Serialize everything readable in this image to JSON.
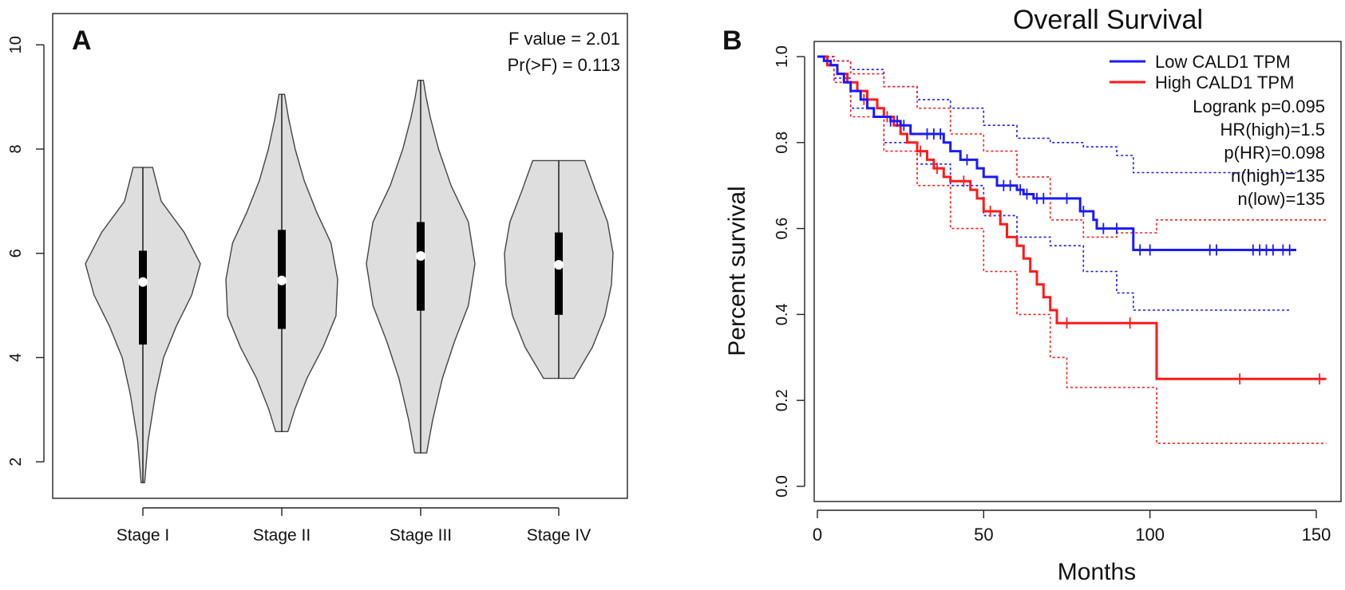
{
  "chart_data": [
    {
      "type": "violin",
      "panel_label": "A",
      "annotations": [
        "F value = 2.01",
        "Pr(>F) = 0.113"
      ],
      "categories": [
        "Stage I",
        "Stage II",
        "Stage III",
        "Stage IV"
      ],
      "yticks": [
        2,
        4,
        6,
        8,
        10
      ],
      "ylim": [
        1.3,
        10.6
      ],
      "violins": [
        {
          "name": "Stage I",
          "min": 1.6,
          "max": 7.65,
          "q1": 4.25,
          "q3": 6.05,
          "median": 5.45,
          "profile": [
            [
              1.6,
              0.03
            ],
            [
              2.4,
              0.09
            ],
            [
              3.3,
              0.22
            ],
            [
              4.0,
              0.36
            ],
            [
              4.6,
              0.58
            ],
            [
              5.2,
              0.85
            ],
            [
              5.8,
              1.0
            ],
            [
              6.4,
              0.72
            ],
            [
              7.0,
              0.32
            ],
            [
              7.65,
              0.17
            ]
          ]
        },
        {
          "name": "Stage II",
          "min": 2.58,
          "max": 9.05,
          "q1": 4.55,
          "q3": 6.45,
          "median": 5.48,
          "profile": [
            [
              2.58,
              0.11
            ],
            [
              3.0,
              0.23
            ],
            [
              3.6,
              0.45
            ],
            [
              4.2,
              0.74
            ],
            [
              4.8,
              0.97
            ],
            [
              5.5,
              1.0
            ],
            [
              6.2,
              0.88
            ],
            [
              6.8,
              0.62
            ],
            [
              7.4,
              0.4
            ],
            [
              8.0,
              0.24
            ],
            [
              8.6,
              0.12
            ],
            [
              9.05,
              0.05
            ]
          ]
        },
        {
          "name": "Stage III",
          "min": 2.17,
          "max": 9.32,
          "q1": 4.9,
          "q3": 6.6,
          "median": 5.95,
          "profile": [
            [
              2.17,
              0.11
            ],
            [
              2.8,
              0.22
            ],
            [
              3.6,
              0.4
            ],
            [
              4.3,
              0.62
            ],
            [
              5.0,
              0.88
            ],
            [
              5.8,
              1.0
            ],
            [
              6.6,
              0.88
            ],
            [
              7.3,
              0.56
            ],
            [
              8.0,
              0.33
            ],
            [
              8.6,
              0.18
            ],
            [
              9.0,
              0.1
            ],
            [
              9.32,
              0.05
            ]
          ]
        },
        {
          "name": "Stage IV",
          "min": 3.6,
          "max": 7.78,
          "q1": 4.82,
          "q3": 6.4,
          "median": 5.78,
          "profile": [
            [
              3.6,
              0.28
            ],
            [
              4.2,
              0.62
            ],
            [
              4.8,
              0.85
            ],
            [
              5.4,
              0.97
            ],
            [
              6.0,
              1.0
            ],
            [
              6.6,
              0.9
            ],
            [
              7.2,
              0.68
            ],
            [
              7.78,
              0.48
            ]
          ]
        }
      ]
    },
    {
      "type": "line",
      "panel_label": "B",
      "title": "Overall Survival",
      "xlabel": "Months",
      "ylabel": "Percent survival",
      "xlim": [
        0,
        155
      ],
      "ylim": [
        0,
        1.05
      ],
      "xticks": [
        0,
        50,
        100,
        150
      ],
      "yticks": [
        "0.0",
        "0.2",
        "0.4",
        "0.6",
        "0.8",
        "1.0"
      ],
      "legend": [
        {
          "name": "Low CALD1 TPM",
          "color": "#1a1aff"
        },
        {
          "name": "High CALD1 TPM",
          "color": "#ff1a1a"
        }
      ],
      "stats": [
        "Logrank p=0.095",
        "HR(high)=1.5",
        "p(HR)=0.098",
        "n(high)=135",
        "n(low)=135"
      ],
      "series": [
        {
          "name": "Low CALD1 TPM",
          "color": "#1a1aff",
          "steps": [
            [
              0,
              1.0
            ],
            [
              2,
              0.99
            ],
            [
              4,
              0.98
            ],
            [
              6,
              0.96
            ],
            [
              8,
              0.94
            ],
            [
              10,
              0.92
            ],
            [
              13,
              0.9
            ],
            [
              15,
              0.88
            ],
            [
              17,
              0.86
            ],
            [
              22,
              0.85
            ],
            [
              25,
              0.84
            ],
            [
              28,
              0.82
            ],
            [
              38,
              0.8
            ],
            [
              40,
              0.78
            ],
            [
              43,
              0.76
            ],
            [
              48,
              0.74
            ],
            [
              50,
              0.72
            ],
            [
              54,
              0.7
            ],
            [
              60,
              0.69
            ],
            [
              62,
              0.68
            ],
            [
              65,
              0.67
            ],
            [
              79,
              0.64
            ],
            [
              83,
              0.62
            ],
            [
              84,
              0.6
            ],
            [
              95,
              0.55
            ],
            [
              144,
              0.55
            ]
          ],
          "censors": [
            [
              22,
              0.85
            ],
            [
              24,
              0.85
            ],
            [
              26,
              0.84
            ],
            [
              33,
              0.82
            ],
            [
              35,
              0.82
            ],
            [
              37,
              0.82
            ],
            [
              45,
              0.76
            ],
            [
              56,
              0.7
            ],
            [
              58,
              0.7
            ],
            [
              61,
              0.69
            ],
            [
              63,
              0.68
            ],
            [
              66,
              0.67
            ],
            [
              68,
              0.67
            ],
            [
              75,
              0.67
            ],
            [
              80,
              0.64
            ],
            [
              86,
              0.6
            ],
            [
              90,
              0.6
            ],
            [
              97,
              0.55
            ],
            [
              100,
              0.55
            ],
            [
              118,
              0.55
            ],
            [
              120,
              0.55
            ],
            [
              131,
              0.55
            ],
            [
              133,
              0.55
            ],
            [
              135,
              0.55
            ],
            [
              137,
              0.55
            ],
            [
              140,
              0.55
            ],
            [
              142,
              0.55
            ]
          ]
        },
        {
          "name": "High CALD1 TPM",
          "color": "#ff1a1a",
          "steps": [
            [
              0,
              1.0
            ],
            [
              3,
              0.98
            ],
            [
              6,
              0.96
            ],
            [
              9,
              0.94
            ],
            [
              12,
              0.92
            ],
            [
              15,
              0.9
            ],
            [
              18,
              0.88
            ],
            [
              20,
              0.86
            ],
            [
              23,
              0.84
            ],
            [
              25,
              0.82
            ],
            [
              27,
              0.8
            ],
            [
              30,
              0.78
            ],
            [
              33,
              0.76
            ],
            [
              35,
              0.74
            ],
            [
              38,
              0.72
            ],
            [
              40,
              0.71
            ],
            [
              46,
              0.69
            ],
            [
              48,
              0.67
            ],
            [
              50,
              0.64
            ],
            [
              55,
              0.61
            ],
            [
              57,
              0.58
            ],
            [
              60,
              0.56
            ],
            [
              62,
              0.53
            ],
            [
              64,
              0.5
            ],
            [
              66,
              0.47
            ],
            [
              68,
              0.44
            ],
            [
              70,
              0.41
            ],
            [
              72,
              0.38
            ],
            [
              102,
              0.25
            ],
            [
              153,
              0.25
            ]
          ],
          "censors": [
            [
              14,
              0.9
            ],
            [
              21,
              0.86
            ],
            [
              31,
              0.78
            ],
            [
              36,
              0.74
            ],
            [
              44,
              0.71
            ],
            [
              52,
              0.64
            ],
            [
              75,
              0.38
            ],
            [
              94,
              0.38
            ],
            [
              127,
              0.25
            ],
            [
              151,
              0.25
            ]
          ]
        }
      ],
      "ci_bands": [
        {
          "color": "#1a1aff",
          "upper": [
            [
              0,
              1.0
            ],
            [
              5,
              0.99
            ],
            [
              10,
              0.97
            ],
            [
              20,
              0.93
            ],
            [
              30,
              0.9
            ],
            [
              40,
              0.88
            ],
            [
              50,
              0.84
            ],
            [
              60,
              0.81
            ],
            [
              70,
              0.8
            ],
            [
              80,
              0.79
            ],
            [
              90,
              0.77
            ],
            [
              95,
              0.73
            ],
            [
              144,
              0.73
            ]
          ],
          "lower": [
            [
              0,
              1.0
            ],
            [
              5,
              0.95
            ],
            [
              10,
              0.88
            ],
            [
              20,
              0.8
            ],
            [
              30,
              0.75
            ],
            [
              40,
              0.7
            ],
            [
              50,
              0.63
            ],
            [
              60,
              0.58
            ],
            [
              70,
              0.56
            ],
            [
              80,
              0.5
            ],
            [
              90,
              0.45
            ],
            [
              95,
              0.41
            ],
            [
              142,
              0.41
            ]
          ]
        },
        {
          "color": "#ff1a1a",
          "upper": [
            [
              0,
              1.0
            ],
            [
              5,
              0.99
            ],
            [
              10,
              0.96
            ],
            [
              20,
              0.93
            ],
            [
              30,
              0.88
            ],
            [
              40,
              0.82
            ],
            [
              50,
              0.78
            ],
            [
              60,
              0.72
            ],
            [
              70,
              0.62
            ],
            [
              80,
              0.58
            ],
            [
              90,
              0.59
            ],
            [
              102,
              0.62
            ],
            [
              153,
              0.62
            ]
          ],
          "lower": [
            [
              0,
              1.0
            ],
            [
              5,
              0.94
            ],
            [
              10,
              0.86
            ],
            [
              20,
              0.78
            ],
            [
              30,
              0.7
            ],
            [
              40,
              0.6
            ],
            [
              50,
              0.5
            ],
            [
              60,
              0.4
            ],
            [
              70,
              0.3
            ],
            [
              75,
              0.23
            ],
            [
              100,
              0.23
            ],
            [
              102,
              0.1
            ],
            [
              153,
              0.1
            ]
          ]
        }
      ]
    }
  ]
}
